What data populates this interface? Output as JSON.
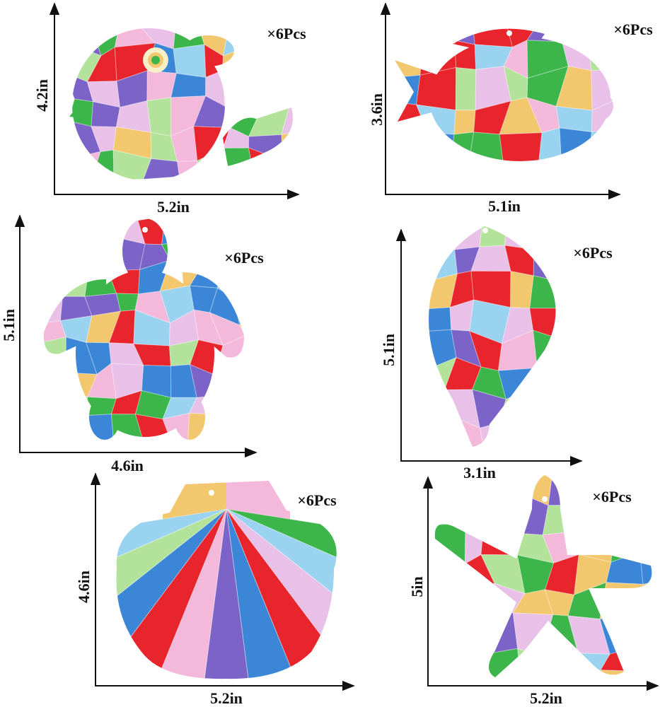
{
  "panels": [
    {
      "quantity": "×6Pcs",
      "height": "4.2in",
      "width": "5.2in"
    },
    {
      "quantity": "×6Pcs",
      "height": "3.6in",
      "width": "5.1in"
    },
    {
      "quantity": "×6Pcs",
      "height": "5.1in",
      "width": "4.6in"
    },
    {
      "quantity": "×6Pcs",
      "height": "5.1in",
      "width": "3.1in"
    },
    {
      "quantity": "×6Pcs",
      "height": "4.6in",
      "width": "5.2in"
    },
    {
      "quantity": "×6Pcs",
      "height": "5in",
      "width": "5.2in"
    }
  ]
}
